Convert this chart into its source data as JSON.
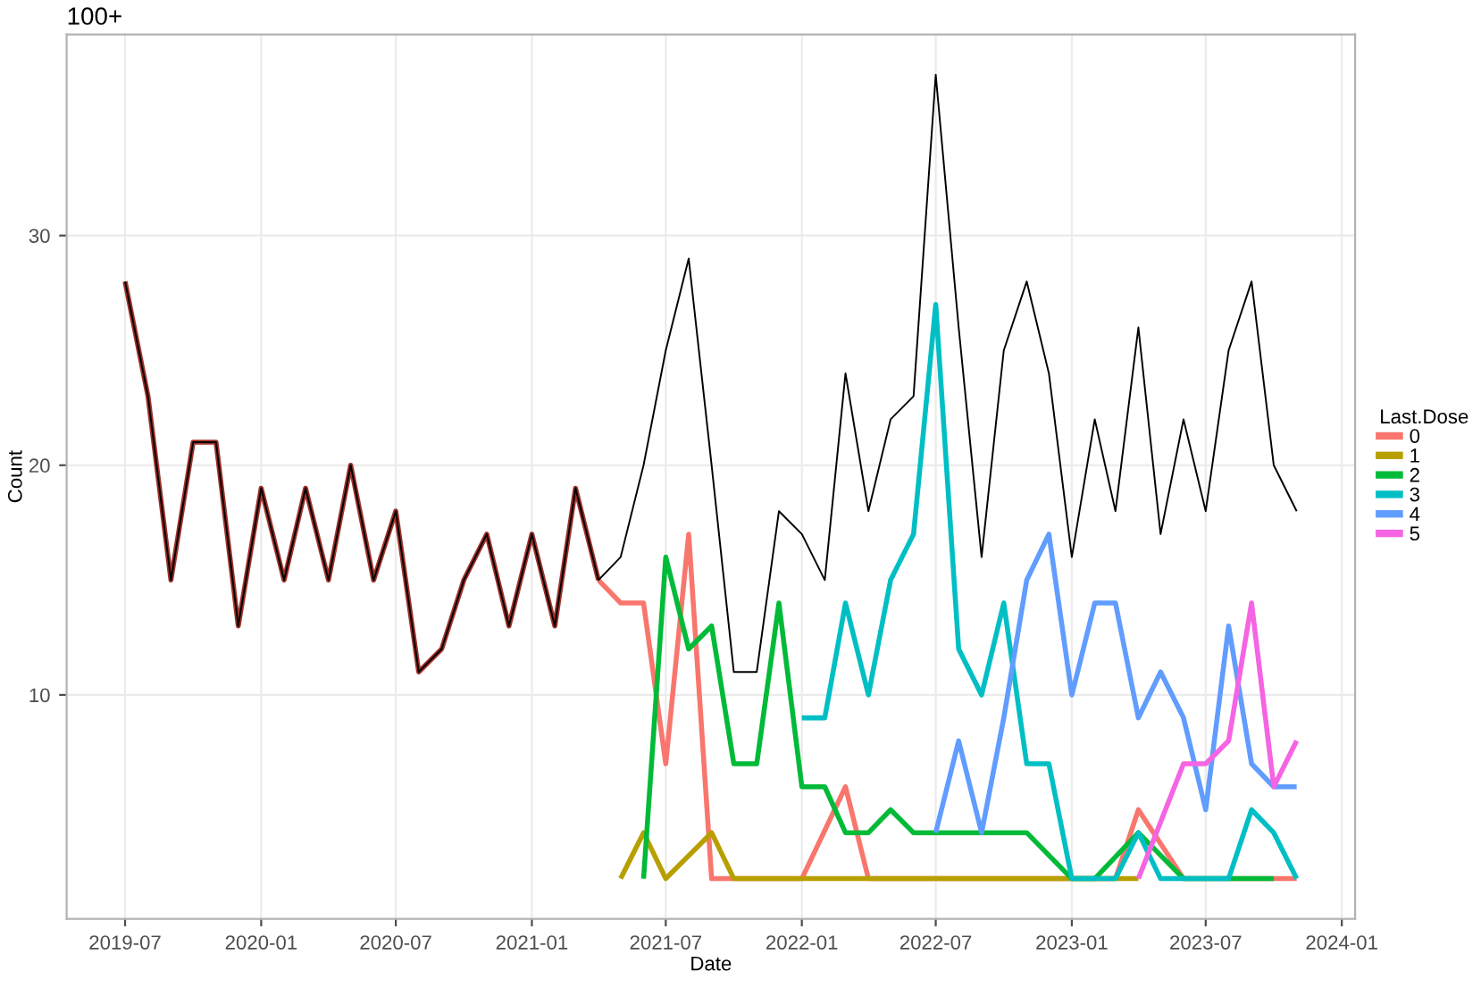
{
  "chart_data": {
    "type": "line",
    "title": "100+",
    "xlabel": "Date",
    "ylabel": "Count",
    "legend_title": "Last.Dose",
    "legend": "right",
    "grid": true,
    "marker": "none",
    "line_style": "solid",
    "xlim": [
      "2019-04-13",
      "2024-01-19"
    ],
    "xticks": [
      "2019-07",
      "2020-01",
      "2020-07",
      "2021-01",
      "2021-07",
      "2022-01",
      "2022-07",
      "2023-01",
      "2023-07",
      "2024-01"
    ],
    "ylim": [
      0.25,
      38.75
    ],
    "yticks": [
      10,
      20,
      30
    ],
    "series": [
      {
        "color": "#000000",
        "x": [
          "2019-07",
          "2019-08",
          "2019-09",
          "2019-10",
          "2019-11",
          "2019-12",
          "2020-01",
          "2020-02",
          "2020-03",
          "2020-04",
          "2020-05",
          "2020-06",
          "2020-07",
          "2020-08",
          "2020-09",
          "2020-10",
          "2020-11",
          "2020-12",
          "2021-01",
          "2021-02",
          "2021-03",
          "2021-04",
          "2021-05",
          "2021-06",
          "2021-07",
          "2021-08",
          "2021-09",
          "2021-10",
          "2021-11",
          "2021-12",
          "2022-01",
          "2022-02",
          "2022-03",
          "2022-04",
          "2022-05",
          "2022-06",
          "2022-07",
          "2022-08",
          "2022-09",
          "2022-10",
          "2022-11",
          "2022-12",
          "2023-01",
          "2023-02",
          "2023-03",
          "2023-04",
          "2023-05",
          "2023-06",
          "2023-07",
          "2023-08",
          "2023-09",
          "2023-10",
          "2023-11"
        ],
        "values": [
          28,
          23,
          15,
          21,
          21,
          13,
          19,
          15,
          19,
          15,
          20,
          15,
          18,
          11,
          12,
          15,
          17,
          13,
          17,
          13,
          19,
          15,
          16,
          20,
          25,
          29,
          20,
          11,
          11,
          18,
          17,
          15,
          24,
          18,
          22,
          23,
          37,
          26,
          16,
          25,
          28,
          24,
          16,
          22,
          18,
          26,
          17,
          22,
          18,
          25,
          28,
          20,
          18
        ]
      },
      {
        "color": "#a0302a",
        "x": [
          "2019-07",
          "2019-08",
          "2019-09",
          "2019-10",
          "2019-11",
          "2019-12",
          "2020-01",
          "2020-02",
          "2020-03",
          "2020-04",
          "2020-05",
          "2020-06",
          "2020-07",
          "2020-08",
          "2020-09",
          "2020-10",
          "2020-11",
          "2020-12",
          "2021-01",
          "2021-02",
          "2021-03",
          "2021-04"
        ],
        "values": [
          28,
          23,
          15,
          21,
          21,
          13,
          19,
          15,
          19,
          15,
          20,
          15,
          18,
          11,
          12,
          15,
          17,
          13,
          17,
          13,
          19,
          15
        ]
      },
      {
        "name": "0",
        "color": "#f8766d",
        "x": [
          "2021-04",
          "2021-05",
          "2021-06",
          "2021-07",
          "2021-08",
          "2021-09",
          "2021-10",
          "2022-01",
          "2022-03",
          "2022-04",
          "2023-03",
          "2023-04",
          "2023-06",
          "2023-10",
          "2023-11"
        ],
        "values": [
          15,
          14,
          14,
          7,
          17,
          2,
          2,
          2,
          6,
          2,
          2,
          5,
          2,
          2,
          2
        ]
      },
      {
        "name": "1",
        "color": "#b79f00",
        "x": [
          "2021-05",
          "2021-06",
          "2021-07",
          "2021-09",
          "2021-10",
          "2023-04"
        ],
        "values": [
          2,
          4,
          2,
          4,
          2,
          2
        ]
      },
      {
        "name": "2",
        "color": "#00ba38",
        "x": [
          "2021-06",
          "2021-07",
          "2021-08",
          "2021-09",
          "2021-10",
          "2021-11",
          "2021-12",
          "2022-01",
          "2022-02",
          "2022-03",
          "2022-04",
          "2022-05",
          "2022-06",
          "2022-07",
          "2022-08",
          "2022-09",
          "2022-10",
          "2022-11",
          "2023-01",
          "2023-02",
          "2023-04",
          "2023-06",
          "2023-10"
        ],
        "values": [
          2,
          16,
          12,
          13,
          7,
          7,
          14,
          6,
          6,
          4,
          4,
          5,
          4,
          4,
          4,
          4,
          4,
          4,
          2,
          2,
          4,
          2,
          2
        ]
      },
      {
        "name": "3",
        "color": "#00bfc4",
        "x": [
          "2022-01",
          "2022-02",
          "2022-03",
          "2022-04",
          "2022-05",
          "2022-06",
          "2022-07",
          "2022-08",
          "2022-09",
          "2022-10",
          "2022-11",
          "2022-12",
          "2023-01",
          "2023-02",
          "2023-03",
          "2023-04",
          "2023-05",
          "2023-06",
          "2023-07",
          "2023-08",
          "2023-09",
          "2023-10",
          "2023-11"
        ],
        "values": [
          9,
          9,
          14,
          10,
          15,
          17,
          27,
          12,
          10,
          14,
          7,
          7,
          2,
          2,
          2,
          4,
          2,
          2,
          2,
          2,
          5,
          4,
          2
        ]
      },
      {
        "name": "4",
        "color": "#619cff",
        "x": [
          "2022-07",
          "2022-08",
          "2022-09",
          "2022-10",
          "2022-11",
          "2022-12",
          "2023-01",
          "2023-02",
          "2023-03",
          "2023-04",
          "2023-05",
          "2023-06",
          "2023-07",
          "2023-08",
          "2023-09",
          "2023-10",
          "2023-11"
        ],
        "values": [
          4,
          8,
          4,
          9,
          15,
          17,
          10,
          14,
          14,
          9,
          11,
          9,
          5,
          13,
          7,
          6,
          6
        ]
      },
      {
        "name": "5",
        "color": "#f564e3",
        "x": [
          "2023-04",
          "2023-06",
          "2023-07",
          "2023-08",
          "2023-09",
          "2023-10",
          "2023-11"
        ],
        "values": [
          2,
          7,
          7,
          8,
          14,
          6,
          8
        ]
      }
    ]
  }
}
